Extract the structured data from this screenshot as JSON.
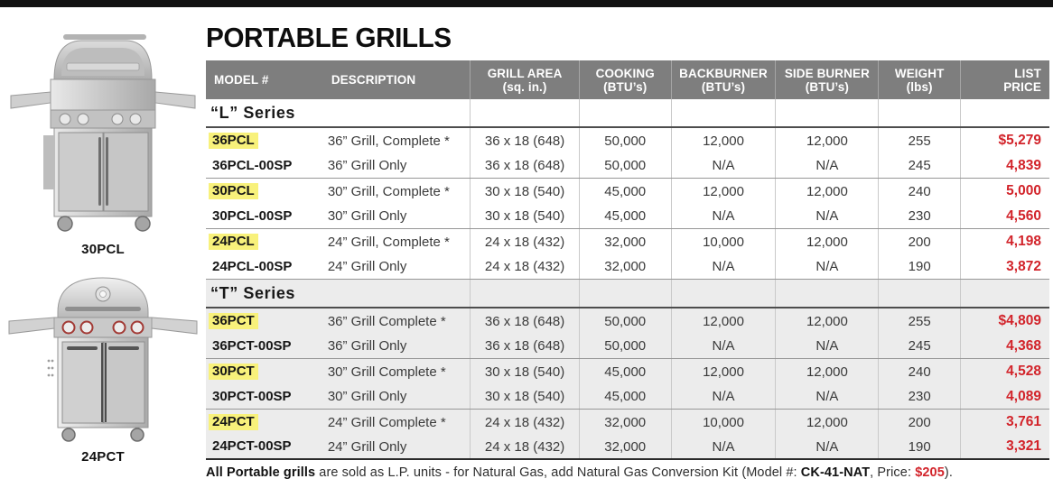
{
  "page": {
    "title": "PORTABLE GRILLS",
    "footer": {
      "bold_prefix": "All Portable grills",
      "mid1": " are sold as L.P. units - for Natural Gas, add Natural Gas Conversion Kit (Model #: ",
      "kit_model": "CK-41-NAT",
      "mid2": ", Price: ",
      "kit_price": "$205",
      "end": ")."
    }
  },
  "products": [
    {
      "label": "30PCL"
    },
    {
      "label": "24PCT"
    }
  ],
  "table": {
    "columns": [
      {
        "label": "MODEL #",
        "sub": ""
      },
      {
        "label": "DESCRIPTION",
        "sub": ""
      },
      {
        "label": "GRILL AREA",
        "sub": "(sq. in.)"
      },
      {
        "label": "COOKING",
        "sub": "(BTU’s)"
      },
      {
        "label": "BACKBURNER",
        "sub": "(BTU’s)"
      },
      {
        "label": "SIDE BURNER",
        "sub": "(BTU’s)"
      },
      {
        "label": "WEIGHT",
        "sub": "(lbs)"
      },
      {
        "label": "LIST",
        "sub": "PRICE"
      }
    ],
    "sections": [
      {
        "name": "“L” Series",
        "shaded": false,
        "rows": [
          {
            "model": "36PCL",
            "highlight": true,
            "description": "36” Grill, Complete *",
            "grill_area": "36 x 18 (648)",
            "cooking": "50,000",
            "backburner": "12,000",
            "side_burner": "12,000",
            "weight": "255",
            "price": "$5,279"
          },
          {
            "model": "36PCL-00SP",
            "highlight": false,
            "description": "36” Grill Only",
            "grill_area": "36 x 18 (648)",
            "cooking": "50,000",
            "backburner": "N/A",
            "side_burner": "N/A",
            "weight": "245",
            "price": "4,839"
          },
          {
            "model": "30PCL",
            "highlight": true,
            "description": "30” Grill, Complete *",
            "grill_area": "30 x 18 (540)",
            "cooking": "45,000",
            "backburner": "12,000",
            "side_burner": "12,000",
            "weight": "240",
            "price": "5,000"
          },
          {
            "model": "30PCL-00SP",
            "highlight": false,
            "description": "30” Grill Only",
            "grill_area": "30 x 18 (540)",
            "cooking": "45,000",
            "backburner": "N/A",
            "side_burner": "N/A",
            "weight": "230",
            "price": "4,560"
          },
          {
            "model": "24PCL",
            "highlight": true,
            "description": "24” Grill, Complete *",
            "grill_area": "24 x 18 (432)",
            "cooking": "32,000",
            "backburner": "10,000",
            "side_burner": "12,000",
            "weight": "200",
            "price": "4,198"
          },
          {
            "model": "24PCL-00SP",
            "highlight": false,
            "description": "24” Grill Only",
            "grill_area": "24 x 18 (432)",
            "cooking": "32,000",
            "backburner": "N/A",
            "side_burner": "N/A",
            "weight": "190",
            "price": "3,872"
          }
        ]
      },
      {
        "name": "“T” Series",
        "shaded": true,
        "rows": [
          {
            "model": "36PCT",
            "highlight": true,
            "description": "36” Grill Complete *",
            "grill_area": "36 x 18 (648)",
            "cooking": "50,000",
            "backburner": "12,000",
            "side_burner": "12,000",
            "weight": "255",
            "price": "$4,809"
          },
          {
            "model": "36PCT-00SP",
            "highlight": false,
            "description": "36” Grill Only",
            "grill_area": "36 x 18 (648)",
            "cooking": "50,000",
            "backburner": "N/A",
            "side_burner": "N/A",
            "weight": "245",
            "price": "4,368"
          },
          {
            "model": "30PCT",
            "highlight": true,
            "description": "30” Grill Complete *",
            "grill_area": "30 x 18 (540)",
            "cooking": "45,000",
            "backburner": "12,000",
            "side_burner": "12,000",
            "weight": "240",
            "price": "4,528"
          },
          {
            "model": "30PCT-00SP",
            "highlight": false,
            "description": "30” Grill Only",
            "grill_area": "30 x 18 (540)",
            "cooking": "45,000",
            "backburner": "N/A",
            "side_burner": "N/A",
            "weight": "230",
            "price": "4,089"
          },
          {
            "model": "24PCT",
            "highlight": true,
            "description": "24” Grill Complete *",
            "grill_area": "24 x 18 (432)",
            "cooking": "32,000",
            "backburner": "10,000",
            "side_burner": "12,000",
            "weight": "200",
            "price": "3,761"
          },
          {
            "model": "24PCT-00SP",
            "highlight": false,
            "description": "24” Grill Only",
            "grill_area": "24 x 18 (432)",
            "cooking": "32,000",
            "backburner": "N/A",
            "side_burner": "N/A",
            "weight": "190",
            "price": "3,321"
          }
        ]
      }
    ]
  },
  "colors": {
    "highlight_yellow": "#f8f17b",
    "price_red": "#d2232a",
    "header_gray": "#7e7e7e",
    "shaded_row_gray": "#ececec"
  }
}
